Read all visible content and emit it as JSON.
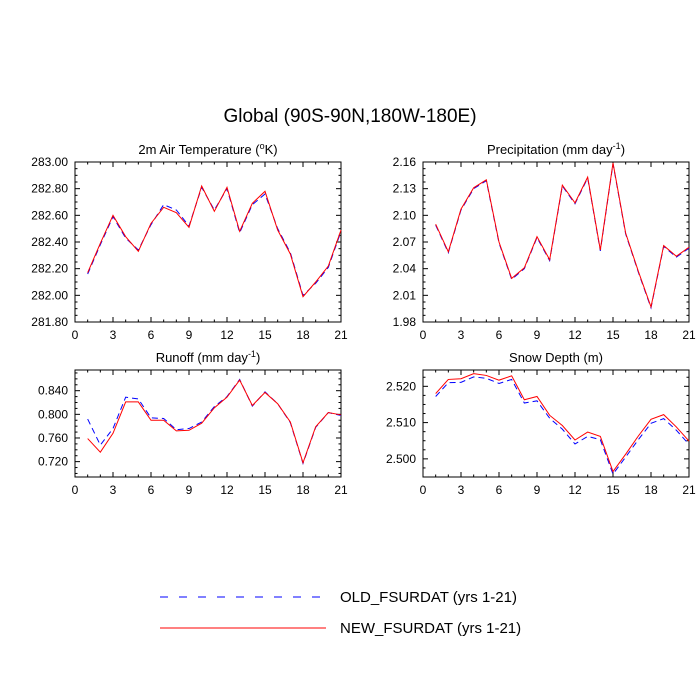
{
  "title": "Global (90S-90N,180W-180E)",
  "legend": [
    {
      "label": "OLD_FSURDAT (yrs 1-21)",
      "color": "#0000ff",
      "dash": true
    },
    {
      "label": "NEW_FSURDAT (yrs 1-21)",
      "color": "#ff0000",
      "dash": false
    }
  ],
  "chart_data": [
    {
      "type": "line",
      "title": "2m Air Temperature (",
      "title_sup": "o",
      "title_after": "K)",
      "title_sup2": "",
      "title_tail": "",
      "xlim": [
        0,
        21
      ],
      "ylim": [
        281.8,
        283.0
      ],
      "xticks": [
        0,
        3,
        6,
        9,
        12,
        15,
        18,
        21
      ],
      "xtick_labels": [
        "0",
        "3",
        "6",
        "9",
        "12",
        "15",
        "18",
        "21"
      ],
      "yticks": [
        281.8,
        282.0,
        282.2,
        282.4,
        282.6,
        282.8,
        283.0
      ],
      "ytick_labels": [
        "281.80",
        "282.00",
        "282.20",
        "282.40",
        "282.60",
        "282.80",
        "283.00"
      ],
      "x": [
        1,
        2,
        3,
        4,
        5,
        6,
        7,
        8,
        9,
        10,
        11,
        12,
        13,
        14,
        15,
        16,
        17,
        18,
        19,
        20,
        21
      ],
      "series": [
        {
          "name": "OLD_FSURDAT (yrs 1-21)",
          "values": [
            282.16,
            282.38,
            282.59,
            282.43,
            282.34,
            282.53,
            282.68,
            282.64,
            282.52,
            282.81,
            282.64,
            282.8,
            282.47,
            282.68,
            282.76,
            282.5,
            282.32,
            282.0,
            282.09,
            282.21,
            282.48
          ]
        },
        {
          "name": "NEW_FSURDAT (yrs 1-21)",
          "values": [
            282.17,
            282.39,
            282.6,
            282.44,
            282.33,
            282.54,
            282.66,
            282.62,
            282.51,
            282.82,
            282.63,
            282.81,
            282.48,
            282.69,
            282.78,
            282.49,
            282.31,
            281.99,
            282.1,
            282.22,
            282.49
          ]
        }
      ]
    },
    {
      "type": "line",
      "title": "Precipitation (mm day",
      "title_sup": "-1",
      "title_after": ")",
      "title_sup2": "",
      "title_tail": "",
      "xlim": [
        0,
        21
      ],
      "ylim": [
        1.98,
        2.16
      ],
      "xticks": [
        0,
        3,
        6,
        9,
        12,
        15,
        18,
        21
      ],
      "xtick_labels": [
        "0",
        "3",
        "6",
        "9",
        "12",
        "15",
        "18",
        "21"
      ],
      "yticks": [
        1.98,
        2.01,
        2.04,
        2.07,
        2.1,
        2.13,
        2.16
      ],
      "ytick_labels": [
        "1.98",
        "2.01",
        "2.04",
        "2.07",
        "2.10",
        "2.13",
        "2.16"
      ],
      "x": [
        1,
        2,
        3,
        4,
        5,
        6,
        7,
        8,
        9,
        10,
        11,
        12,
        13,
        14,
        15,
        16,
        17,
        18,
        19,
        20,
        21
      ],
      "series": [
        {
          "name": "OLD_FSURDAT (yrs 1-21)",
          "values": [
            2.089,
            2.058,
            2.106,
            2.13,
            2.139,
            2.069,
            2.028,
            2.04,
            2.075,
            2.049,
            2.133,
            2.113,
            2.142,
            2.06,
            2.158,
            2.079,
            2.036,
            1.996,
            2.065,
            2.053,
            2.063
          ]
        },
        {
          "name": "NEW_FSURDAT (yrs 1-21)",
          "values": [
            2.09,
            2.059,
            2.107,
            2.131,
            2.14,
            2.07,
            2.029,
            2.041,
            2.076,
            2.05,
            2.134,
            2.114,
            2.143,
            2.061,
            2.159,
            2.08,
            2.037,
            1.997,
            2.066,
            2.054,
            2.064
          ]
        }
      ]
    },
    {
      "type": "line",
      "title": "Runoff (mm day",
      "title_sup": "-1",
      "title_after": ")",
      "title_sup2": "",
      "title_tail": "",
      "xlim": [
        0,
        21
      ],
      "ylim": [
        0.694,
        0.875
      ],
      "xticks": [
        0,
        3,
        6,
        9,
        12,
        15,
        18,
        21
      ],
      "xtick_labels": [
        "0",
        "3",
        "6",
        "9",
        "12",
        "15",
        "18",
        "21"
      ],
      "yticks": [
        0.72,
        0.76,
        0.8,
        0.84
      ],
      "ytick_labels": [
        "0.720",
        "0.760",
        "0.800",
        "0.840"
      ],
      "x": [
        1,
        2,
        3,
        4,
        5,
        6,
        7,
        8,
        9,
        10,
        11,
        12,
        13,
        14,
        15,
        16,
        17,
        18,
        19,
        20,
        21
      ],
      "series": [
        {
          "name": "OLD_FSURDAT (yrs 1-21)",
          "values": [
            0.792,
            0.748,
            0.776,
            0.829,
            0.826,
            0.794,
            0.793,
            0.774,
            0.776,
            0.787,
            0.813,
            0.83,
            0.859,
            0.814,
            0.838,
            0.818,
            0.786,
            0.717,
            0.778,
            0.803,
            0.798
          ]
        },
        {
          "name": "NEW_FSURDAT (yrs 1-21)",
          "values": [
            0.759,
            0.736,
            0.768,
            0.821,
            0.821,
            0.79,
            0.79,
            0.772,
            0.773,
            0.785,
            0.811,
            0.829,
            0.858,
            0.815,
            0.837,
            0.818,
            0.787,
            0.718,
            0.779,
            0.803,
            0.799
          ]
        }
      ]
    },
    {
      "type": "line",
      "title": "Snow Depth (m)",
      "title_sup": "",
      "title_after": "",
      "title_sup2": "",
      "title_tail": "",
      "xlim": [
        0,
        21
      ],
      "ylim": [
        2.495,
        2.5245
      ],
      "xticks": [
        0,
        3,
        6,
        9,
        12,
        15,
        18,
        21
      ],
      "xtick_labels": [
        "0",
        "3",
        "6",
        "9",
        "12",
        "15",
        "18",
        "21"
      ],
      "yticks": [
        2.5,
        2.51,
        2.52
      ],
      "ytick_labels": [
        "2.500",
        "2.510",
        "2.520"
      ],
      "x": [
        1,
        2,
        3,
        4,
        5,
        6,
        7,
        8,
        9,
        10,
        11,
        12,
        13,
        14,
        15,
        16,
        17,
        18,
        19,
        20,
        21
      ],
      "series": [
        {
          "name": "OLD_FSURDAT (yrs 1-21)",
          "values": [
            2.5172,
            2.521,
            2.5211,
            2.5226,
            2.5222,
            2.5208,
            2.5219,
            2.5154,
            2.516,
            2.5112,
            2.5082,
            2.5041,
            2.5062,
            2.5053,
            2.4958,
            2.5005,
            2.5053,
            2.5098,
            2.5111,
            2.5079,
            2.504
          ]
        },
        {
          "name": "NEW_FSURDAT (yrs 1-21)",
          "values": [
            2.518,
            2.5219,
            2.5221,
            2.5235,
            2.523,
            2.5217,
            2.5229,
            2.5163,
            2.5172,
            2.512,
            2.5092,
            2.5052,
            2.5074,
            2.5062,
            2.4965,
            2.5013,
            2.5063,
            2.5109,
            2.5122,
            2.5088,
            2.5049
          ]
        }
      ]
    }
  ]
}
